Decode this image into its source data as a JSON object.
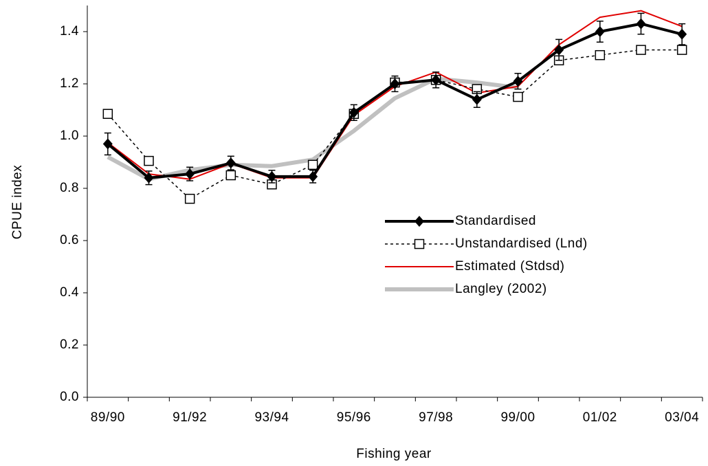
{
  "chart_data": {
    "type": "line",
    "x_label": "Fishing year",
    "y_label": "CPUE index",
    "categories": [
      "89/90",
      null,
      "91/92",
      null,
      "93/94",
      null,
      "95/96",
      null,
      "97/98",
      null,
      "99/00",
      null,
      "01/02",
      null,
      "03/04"
    ],
    "ylim": [
      0,
      1.5
    ],
    "yticks": [
      {
        "value": 0,
        "label": "0.0"
      },
      0.2,
      0.4,
      0.6,
      0.8,
      {
        "value": 1,
        "label": "1.0"
      },
      1.2,
      1.4
    ],
    "series": [
      {
        "name": "Standardised",
        "color": "#000000",
        "line_width": 4,
        "dashed": false,
        "marker": "diamond",
        "values": [
          0.97,
          0.84,
          0.855,
          0.897,
          0.845,
          0.845,
          1.09,
          1.2,
          1.215,
          1.14,
          1.21,
          1.33,
          1.4,
          1.43,
          1.39
        ],
        "errors": [
          0.042,
          0.026,
          0.026,
          0.026,
          0.024,
          0.024,
          0.03,
          0.03,
          0.03,
          0.03,
          0.03,
          0.04,
          0.04,
          0.04,
          0.04
        ]
      },
      {
        "name": "Unstandardised (Lnd)",
        "color": "#000000",
        "line_width": 1.5,
        "dashed": true,
        "marker": "square",
        "values": [
          1.085,
          0.905,
          0.76,
          0.85,
          0.815,
          0.89,
          1.085,
          1.205,
          1.215,
          1.18,
          1.15,
          1.29,
          1.31,
          1.33,
          1.33
        ]
      },
      {
        "name": "Estimated (Stdsd)",
        "color": "#e00000",
        "line_width": 2,
        "dashed": false,
        "marker": "none",
        "values": [
          0.975,
          0.855,
          0.835,
          0.895,
          0.84,
          0.84,
          1.08,
          1.19,
          1.245,
          1.165,
          1.19,
          1.35,
          1.455,
          1.48,
          1.42
        ]
      },
      {
        "name": "Langley (2002)",
        "color": "#c0c0c0",
        "line_width": 6,
        "dashed": false,
        "marker": "none",
        "values": [
          0.92,
          0.835,
          0.87,
          0.89,
          0.885,
          0.91,
          1.02,
          1.145,
          1.22,
          1.205,
          1.185,
          null,
          null,
          null,
          null
        ]
      }
    ]
  }
}
